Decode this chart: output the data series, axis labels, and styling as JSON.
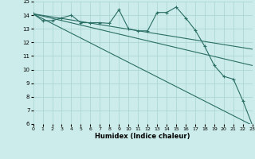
{
  "xlabel": "Humidex (Indice chaleur)",
  "background_color": "#cbecea",
  "grid_color": "#a8d4d0",
  "line_color": "#2a6e64",
  "xlim": [
    0,
    23
  ],
  "ylim": [
    6,
    15
  ],
  "xticks": [
    0,
    1,
    2,
    3,
    4,
    5,
    6,
    7,
    8,
    9,
    10,
    11,
    12,
    13,
    14,
    15,
    16,
    17,
    18,
    19,
    20,
    21,
    22,
    23
  ],
  "yticks": [
    6,
    7,
    8,
    9,
    10,
    11,
    12,
    13,
    14,
    15
  ],
  "main_x": [
    0,
    1,
    2,
    3,
    4,
    5,
    6,
    7,
    8,
    9,
    10,
    11,
    12,
    13,
    14,
    15,
    16,
    17,
    18,
    19,
    20,
    21,
    22,
    23
  ],
  "main_y": [
    14.1,
    13.6,
    13.6,
    13.8,
    14.0,
    13.45,
    13.45,
    13.45,
    13.4,
    14.4,
    13.0,
    12.85,
    12.85,
    14.2,
    14.2,
    14.6,
    13.8,
    12.9,
    11.7,
    10.3,
    9.5,
    9.3,
    7.7,
    5.9
  ],
  "line1_x": [
    0,
    23
  ],
  "line1_y": [
    14.1,
    5.9
  ],
  "line2_x": [
    0,
    23
  ],
  "line2_y": [
    14.1,
    10.3
  ],
  "line3_x": [
    0,
    23
  ],
  "line3_y": [
    14.1,
    11.5
  ],
  "xlabel_fontsize": 6,
  "xlabel_fontweight": "bold",
  "tick_fontsize": 5.5,
  "linewidth": 0.8,
  "marker_size": 2.5
}
